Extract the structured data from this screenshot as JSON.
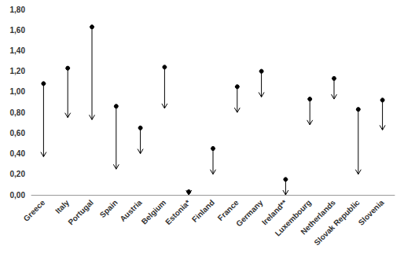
{
  "chart_data": {
    "type": "arrow",
    "categories": [
      "Greece",
      "Italy",
      "Portugal",
      "Spain",
      "Austria",
      "Belgium",
      "Estonia*",
      "Finland",
      "France",
      "Germany",
      "Ireland**",
      "Luxembourg",
      "Netherlands",
      "Slovak Republic",
      "Slovenia"
    ],
    "values": [
      1.08,
      1.23,
      1.63,
      0.86,
      0.65,
      1.24,
      0.03,
      0.45,
      1.05,
      1.2,
      0.15,
      0.93,
      1.13,
      0.83,
      0.92
    ],
    "end_values": [
      0.37,
      0.75,
      0.73,
      0.25,
      0.4,
      0.84,
      0.0,
      0.2,
      0.8,
      0.95,
      0.0,
      0.68,
      0.93,
      0.2,
      0.63
    ],
    "color": "#000000",
    "marker": "circle",
    "ylim": [
      0,
      1.8
    ],
    "yticks": [
      {
        "value": 0,
        "label": "0,00"
      },
      {
        "value": 0.2,
        "label": "0,20"
      },
      {
        "value": 0.4,
        "label": "0,40"
      },
      {
        "value": 0.6,
        "label": "0,60"
      },
      {
        "value": 0.8,
        "label": "0,80"
      },
      {
        "value": 1.0,
        "label": "1,00"
      },
      {
        "value": 1.2,
        "label": "1,20"
      },
      {
        "value": 1.4,
        "label": "1,40"
      },
      {
        "value": 1.6,
        "label": "1,60"
      },
      {
        "value": 1.8,
        "label": "1,80"
      }
    ],
    "grid": false
  }
}
